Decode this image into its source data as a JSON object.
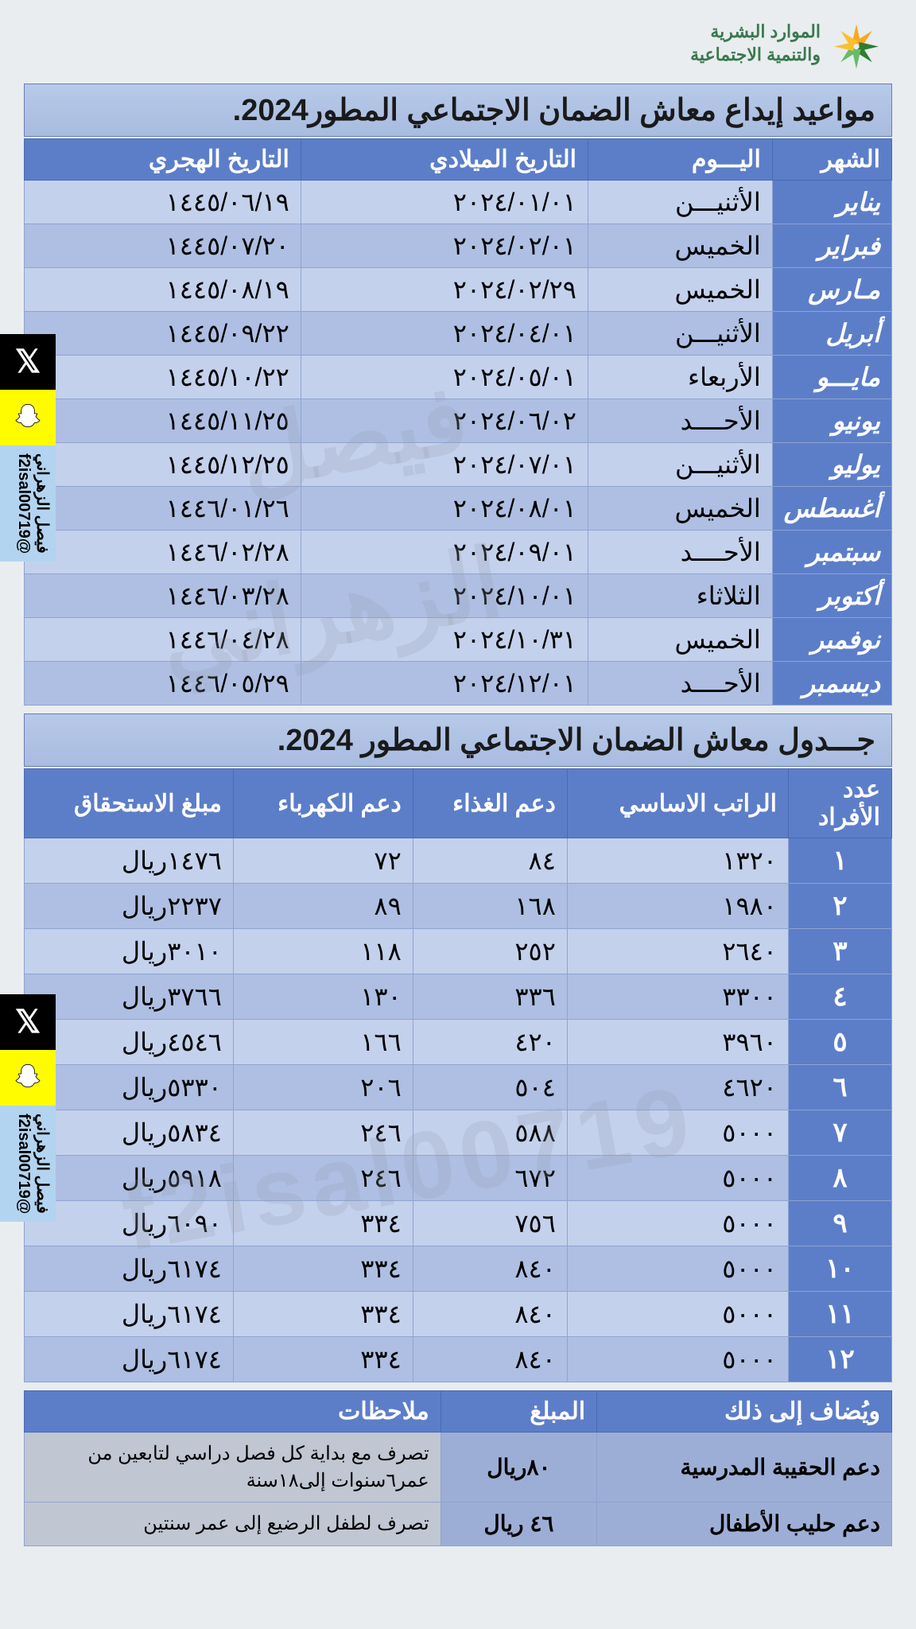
{
  "logo": {
    "line1": "الموارد البشرية",
    "line2": "والتنمية الاجتماعية"
  },
  "title1": "مواعيد إيداع معاش الضمان الاجتماعي المطور2024.",
  "title2": "جـــدول معاش الضمان الاجتماعي المطور 2024.",
  "schedule": {
    "headers": {
      "month": "الشهر",
      "day": "اليـــوم",
      "greg": "التاريخ الميلادي",
      "hijri": "التاريخ الهجري"
    },
    "rows": [
      {
        "month": "يناير",
        "day": "الأثنيـــن",
        "greg": "٢٠٢٤/٠١/٠١",
        "hijri": "١٤٤٥/٠٦/١٩"
      },
      {
        "month": "فبراير",
        "day": "الخميس",
        "greg": "٢٠٢٤/٠٢/٠١",
        "hijri": "١٤٤٥/٠٧/٢٠"
      },
      {
        "month": "مـارس",
        "day": "الخميس",
        "greg": "٢٠٢٤/٠٢/٢٩",
        "hijri": "١٤٤٥/٠٨/١٩"
      },
      {
        "month": "أبريل",
        "day": "الأثنيـــن",
        "greg": "٢٠٢٤/٠٤/٠١",
        "hijri": "١٤٤٥/٠٩/٢٢"
      },
      {
        "month": "مايـــو",
        "day": "الأربعاء",
        "greg": "٢٠٢٤/٠٥/٠١",
        "hijri": "١٤٤٥/١٠/٢٢"
      },
      {
        "month": "يونيو",
        "day": "الأحــــد",
        "greg": "٢٠٢٤/٠٦/٠٢",
        "hijri": "١٤٤٥/١١/٢٥"
      },
      {
        "month": "يوليو",
        "day": "الأثنيـــن",
        "greg": "٢٠٢٤/٠٧/٠١",
        "hijri": "١٤٤٥/١٢/٢٥"
      },
      {
        "month": "أغسطس",
        "day": "الخميس",
        "greg": "٢٠٢٤/٠٨/٠١",
        "hijri": "١٤٤٦/٠١/٢٦"
      },
      {
        "month": "سبتمبر",
        "day": "الأحــــد",
        "greg": "٢٠٢٤/٠٩/٠١",
        "hijri": "١٤٤٦/٠٢/٢٨"
      },
      {
        "month": "أكتوبر",
        "day": "الثلاثاء",
        "greg": "٢٠٢٤/١٠/٠١",
        "hijri": "١٤٤٦/٠٣/٢٨"
      },
      {
        "month": "نوفمبر",
        "day": "الخميس",
        "greg": "٢٠٢٤/١٠/٣١",
        "hijri": "١٤٤٦/٠٤/٢٨"
      },
      {
        "month": "ديسمبر",
        "day": "الأحــــد",
        "greg": "٢٠٢٤/١٢/٠١",
        "hijri": "١٤٤٦/٠٥/٢٩"
      }
    ]
  },
  "amounts": {
    "headers": {
      "count": "عدد الأفراد",
      "base": "الراتب الاساسي",
      "food": "دعم الغذاء",
      "elec": "دعم الكهرباء",
      "total": "مبلغ الاستحقاق"
    },
    "rows": [
      {
        "count": "١",
        "base": "١٣٢٠",
        "food": "٨٤",
        "elec": "٧٢",
        "total": "١٤٧٦ريال"
      },
      {
        "count": "٢",
        "base": "١٩٨٠",
        "food": "١٦٨",
        "elec": "٨٩",
        "total": "٢٢٣٧ريال"
      },
      {
        "count": "٣",
        "base": "٢٦٤٠",
        "food": "٢٥٢",
        "elec": "١١٨",
        "total": "٣٠١٠ريال"
      },
      {
        "count": "٤",
        "base": "٣٣٠٠",
        "food": "٣٣٦",
        "elec": "١٣٠",
        "total": "٣٧٦٦ريال"
      },
      {
        "count": "٥",
        "base": "٣٩٦٠",
        "food": "٤٢٠",
        "elec": "١٦٦",
        "total": "٤٥٤٦ريال"
      },
      {
        "count": "٦",
        "base": "٤٦٢٠",
        "food": "٥٠٤",
        "elec": "٢٠٦",
        "total": "٥٣٣٠ريال"
      },
      {
        "count": "٧",
        "base": "٥٠٠٠",
        "food": "٥٨٨",
        "elec": "٢٤٦",
        "total": "٥٨٣٤ريال"
      },
      {
        "count": "٨",
        "base": "٥٠٠٠",
        "food": "٦٧٢",
        "elec": "٢٤٦",
        "total": "٥٩١٨ريال"
      },
      {
        "count": "٩",
        "base": "٥٠٠٠",
        "food": "٧٥٦",
        "elec": "٣٣٤",
        "total": "٦٠٩٠ريال"
      },
      {
        "count": "١٠",
        "base": "٥٠٠٠",
        "food": "٨٤٠",
        "elec": "٣٣٤",
        "total": "٦١٧٤ريال"
      },
      {
        "count": "١١",
        "base": "٥٠٠٠",
        "food": "٨٤٠",
        "elec": "٣٣٤",
        "total": "٦١٧٤ريال"
      },
      {
        "count": "١٢",
        "base": "٥٠٠٠",
        "food": "٨٤٠",
        "elec": "٣٣٤",
        "total": "٦١٧٤ريال"
      }
    ]
  },
  "addendum": {
    "header": "ويُضاف إلى ذلك",
    "amount_header": "المبلغ",
    "notes_header": "ملاحظات",
    "rows": [
      {
        "label": "دعم الحقيبة المدرسية",
        "amount": "٨٠ريال",
        "notes": "تصرف مع بداية كل فصل دراسي لتابعين من عمر٦سنوات إلى١٨سنة"
      },
      {
        "label": "دعم حليب الأطفال",
        "amount": "٤٦ ريال",
        "notes": "تصرف لطفل الرضيع إلى عمر سنتين"
      }
    ]
  },
  "social": {
    "name": "فيصل الزهراني",
    "handle": "@f2isal00719",
    "watermark": "f2isal00719"
  },
  "colors": {
    "header_bg": "#5c7ec9",
    "row_even": "#c4d1ed",
    "row_odd": "#aebfe3",
    "title_bg": "#a8bce0",
    "logo_green": "#3a7850"
  }
}
